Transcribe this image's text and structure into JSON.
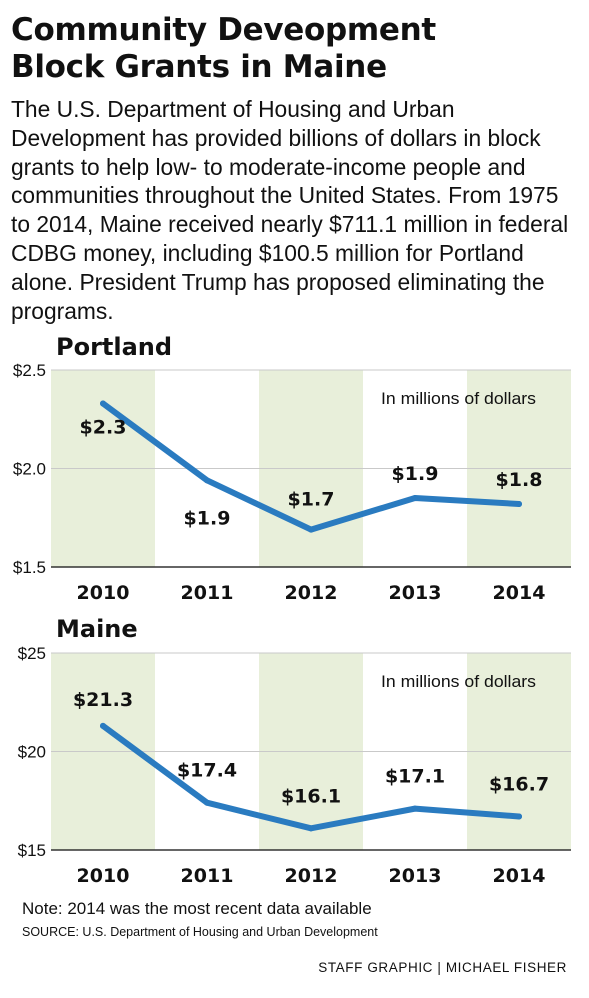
{
  "header": {
    "title_line1": "Community Deveopment",
    "title_line2": "Block Grants in Maine",
    "intro": "The U.S. Department of Housing and Urban Development has provided billions of dollars in block grants to help low- to moderate-income people and communities throughout the United States. From 1975 to 2014, Maine received nearly $711.1 million in federal CDBG money, including $100.5 million for Portland alone. President Trump has proposed eliminating the programs."
  },
  "colors": {
    "line": "#2a7bc0",
    "band": "#e8efda",
    "grid": "#c9c9c9",
    "text": "#111111"
  },
  "chart_data": [
    {
      "type": "line",
      "title": "Portland",
      "unit_note": "In millions of dollars",
      "categories": [
        "2010",
        "2011",
        "2012",
        "2013",
        "2014"
      ],
      "values": [
        2.33,
        1.94,
        1.69,
        1.85,
        1.82
      ],
      "data_labels": [
        "$2.3",
        "$1.9",
        "$1.7",
        "$1.9",
        "$1.8"
      ],
      "ylim": [
        1.5,
        2.5
      ],
      "yticks": [
        1.5,
        2.0,
        2.5
      ],
      "ytick_labels": [
        "$1.5",
        "$2.0",
        "$2.5"
      ],
      "grid": true,
      "shaded_categories": [
        "2010",
        "2012",
        "2014"
      ]
    },
    {
      "type": "line",
      "title": "Maine",
      "unit_note": "In millions of dollars",
      "categories": [
        "2010",
        "2011",
        "2012",
        "2013",
        "2014"
      ],
      "values": [
        21.3,
        17.4,
        16.1,
        17.1,
        16.7
      ],
      "data_labels": [
        "$21.3",
        "$17.4",
        "$16.1",
        "$17.1",
        "$16.7"
      ],
      "ylim": [
        15,
        25
      ],
      "yticks": [
        15,
        20,
        25
      ],
      "ytick_labels": [
        "$15",
        "$20",
        "$25"
      ],
      "grid": true,
      "shaded_categories": [
        "2010",
        "2012",
        "2014"
      ]
    }
  ],
  "footer": {
    "note": "Note: 2014 was the most recent data available",
    "source": "SOURCE: U.S. Department of Housing and Urban Development",
    "credit": "STAFF GRAPHIC | MICHAEL FISHER"
  }
}
